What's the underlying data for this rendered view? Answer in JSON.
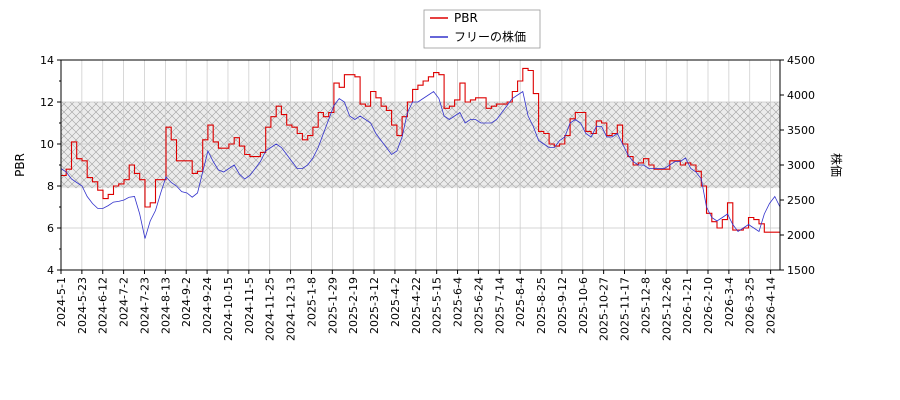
{
  "chart_data": {
    "type": "line",
    "ylabel_left": "PBR",
    "ylabel_right": "株価",
    "ylim_left": [
      4,
      14
    ],
    "ylim_right": [
      1500,
      4500
    ],
    "yticks_left": [
      "4",
      "6",
      "8",
      "10",
      "12",
      "14"
    ],
    "yticks_right": [
      "1500",
      "2000",
      "2500",
      "3000",
      "3500",
      "4000",
      "4500"
    ],
    "band": [
      7.9,
      12
    ],
    "x_tick_labels": [
      "2024-5-1",
      "2024-5-23",
      "2024-6-12",
      "2024-7-2",
      "2024-7-23",
      "2024-8-13",
      "2024-9-2",
      "2024-9-24",
      "2024-10-15",
      "2024-11-5",
      "2024-11-25",
      "2024-12-13",
      "2025-1-8",
      "2025-1-29",
      "2025-2-19",
      "2025-3-12",
      "2025-4-2",
      "2025-4-22",
      "2025-5-15",
      "2025-6-4",
      "2025-6-24",
      "2025-7-14",
      "2025-8-4",
      "2025-8-25",
      "2025-9-12",
      "2025-10-6",
      "2025-10-27",
      "2025-11-17",
      "2025-12-8",
      "2025-12-26",
      "2026-1-21",
      "2026-2-10",
      "2026-3-4",
      "2026-3-25",
      "2026-4-14"
    ],
    "legend_placement": "top-center",
    "grid": true,
    "series": [
      {
        "name": "PBR",
        "color": "#dd0000",
        "axis": "left",
        "values": [
          8.5,
          8.8,
          10.1,
          9.3,
          9.2,
          8.4,
          8.2,
          7.8,
          7.4,
          7.6,
          8.0,
          8.1,
          8.3,
          9.0,
          8.6,
          8.3,
          7.0,
          7.2,
          8.3,
          8.3,
          10.8,
          10.2,
          9.2,
          9.2,
          9.2,
          8.6,
          8.7,
          10.2,
          10.9,
          10.1,
          9.8,
          9.8,
          10.0,
          10.3,
          9.9,
          9.5,
          9.4,
          9.4,
          9.6,
          10.8,
          11.3,
          11.8,
          11.4,
          10.9,
          10.8,
          10.5,
          10.2,
          10.4,
          10.8,
          11.5,
          11.3,
          11.5,
          12.9,
          12.7,
          13.3,
          13.3,
          13.2,
          11.9,
          11.8,
          12.5,
          12.2,
          11.8,
          11.6,
          10.9,
          10.4,
          11.3,
          12.0,
          12.6,
          12.8,
          13.0,
          13.2,
          13.4,
          13.3,
          11.7,
          11.8,
          12.1,
          12.9,
          12.0,
          12.1,
          12.2,
          12.2,
          11.7,
          11.8,
          11.9,
          11.9,
          12.0,
          12.5,
          13.0,
          13.6,
          13.5,
          12.4,
          10.6,
          10.5,
          10.0,
          9.9,
          10.0,
          10.4,
          11.2,
          11.5,
          11.5,
          10.6,
          10.5,
          11.1,
          11.0,
          10.4,
          10.5,
          10.9,
          10.0,
          9.4,
          9.0,
          9.1,
          9.3,
          9.0,
          8.8,
          8.8,
          8.8,
          9.2,
          9.2,
          9.0,
          9.1,
          9.0,
          8.7,
          8.0,
          6.7,
          6.3,
          6.0,
          6.4,
          7.2,
          5.9,
          5.9,
          6.0,
          6.5,
          6.4,
          6.2,
          5.8,
          5.8,
          5.8,
          5.8
        ]
      },
      {
        "name": "フリーの株価",
        "color": "#3333cc",
        "axis": "right",
        "values": [
          2950,
          2900,
          2800,
          2750,
          2700,
          2550,
          2450,
          2380,
          2380,
          2420,
          2470,
          2480,
          2500,
          2540,
          2550,
          2300,
          1950,
          2200,
          2350,
          2600,
          2830,
          2750,
          2700,
          2620,
          2600,
          2540,
          2600,
          2900,
          3200,
          3050,
          2930,
          2900,
          2950,
          3000,
          2870,
          2800,
          2850,
          2950,
          3050,
          3200,
          3250,
          3300,
          3250,
          3150,
          3050,
          2950,
          2950,
          3000,
          3100,
          3250,
          3450,
          3650,
          3850,
          3950,
          3900,
          3700,
          3650,
          3700,
          3650,
          3600,
          3450,
          3350,
          3250,
          3150,
          3200,
          3400,
          3750,
          3900,
          3900,
          3950,
          4000,
          4050,
          3950,
          3700,
          3650,
          3700,
          3750,
          3600,
          3650,
          3650,
          3600,
          3600,
          3600,
          3650,
          3750,
          3850,
          3950,
          4000,
          4050,
          3700,
          3550,
          3350,
          3300,
          3250,
          3250,
          3350,
          3400,
          3600,
          3650,
          3600,
          3450,
          3400,
          3550,
          3550,
          3400,
          3400,
          3450,
          3300,
          3150,
          3050,
          3000,
          3000,
          2950,
          2950,
          2950,
          2950,
          3000,
          3050,
          3050,
          3100,
          2950,
          2900,
          2800,
          2400,
          2250,
          2200,
          2250,
          2300,
          2150,
          2050,
          2100,
          2150,
          2100,
          2050,
          2300,
          2450,
          2550,
          2400
        ]
      }
    ]
  },
  "legend": {
    "pbr_label": "PBR",
    "price_label": "フリーの株価"
  }
}
